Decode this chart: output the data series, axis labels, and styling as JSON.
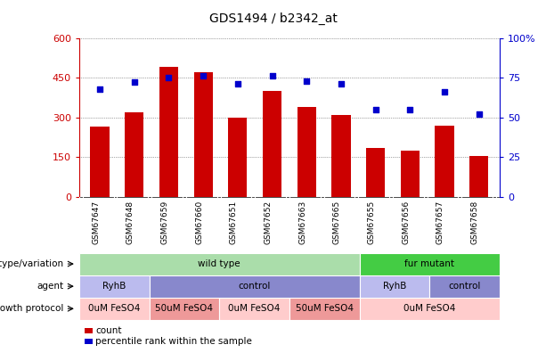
{
  "title": "GDS1494 / b2342_at",
  "samples": [
    "GSM67647",
    "GSM67648",
    "GSM67659",
    "GSM67660",
    "GSM67651",
    "GSM67652",
    "GSM67663",
    "GSM67665",
    "GSM67655",
    "GSM67656",
    "GSM67657",
    "GSM67658"
  ],
  "counts": [
    265,
    320,
    490,
    470,
    300,
    400,
    340,
    310,
    185,
    175,
    270,
    155
  ],
  "percentile_ranks": [
    68,
    72,
    75,
    76,
    71,
    76,
    73,
    71,
    55,
    55,
    66,
    52
  ],
  "bar_color": "#cc0000",
  "dot_color": "#0000cc",
  "left_ylim": [
    0,
    600
  ],
  "right_ylim": [
    0,
    100
  ],
  "left_yticks": [
    0,
    150,
    300,
    450,
    600
  ],
  "right_yticks": [
    0,
    25,
    50,
    75,
    100
  ],
  "right_yticklabels": [
    "0",
    "25",
    "50",
    "75",
    "100%"
  ],
  "genotype_variation": {
    "wt_cols": 8,
    "fm_cols": 4,
    "wt_color": "#aaddaa",
    "fm_color": "#44cc44",
    "wt_label": "wild type",
    "fm_label": "fur mutant"
  },
  "agent_segments": [
    {
      "label": "RyhB",
      "start": 0,
      "end": 2,
      "color": "#bbbbee"
    },
    {
      "label": "control",
      "start": 2,
      "end": 8,
      "color": "#8888cc"
    },
    {
      "label": "RyhB",
      "start": 8,
      "end": 10,
      "color": "#bbbbee"
    },
    {
      "label": "control",
      "start": 10,
      "end": 12,
      "color": "#8888cc"
    }
  ],
  "growth_segments": [
    {
      "label": "0uM FeSO4",
      "start": 0,
      "end": 2,
      "color": "#ffcccc"
    },
    {
      "label": "50uM FeSO4",
      "start": 2,
      "end": 4,
      "color": "#ee9999"
    },
    {
      "label": "0uM FeSO4",
      "start": 4,
      "end": 6,
      "color": "#ffcccc"
    },
    {
      "label": "50uM FeSO4",
      "start": 6,
      "end": 8,
      "color": "#ee9999"
    },
    {
      "label": "0uM FeSO4",
      "start": 8,
      "end": 12,
      "color": "#ffcccc"
    }
  ],
  "legend_items": [
    {
      "color": "#cc0000",
      "label": "count"
    },
    {
      "color": "#0000cc",
      "label": "percentile rank within the sample"
    }
  ],
  "bg_color": "#ffffff",
  "left_tick_color": "#cc0000",
  "right_tick_color": "#0000cc",
  "grid_color": "#555555",
  "tick_bg_color": "#cccccc",
  "tick_sep_color": "#ffffff",
  "bar_width": 0.55
}
